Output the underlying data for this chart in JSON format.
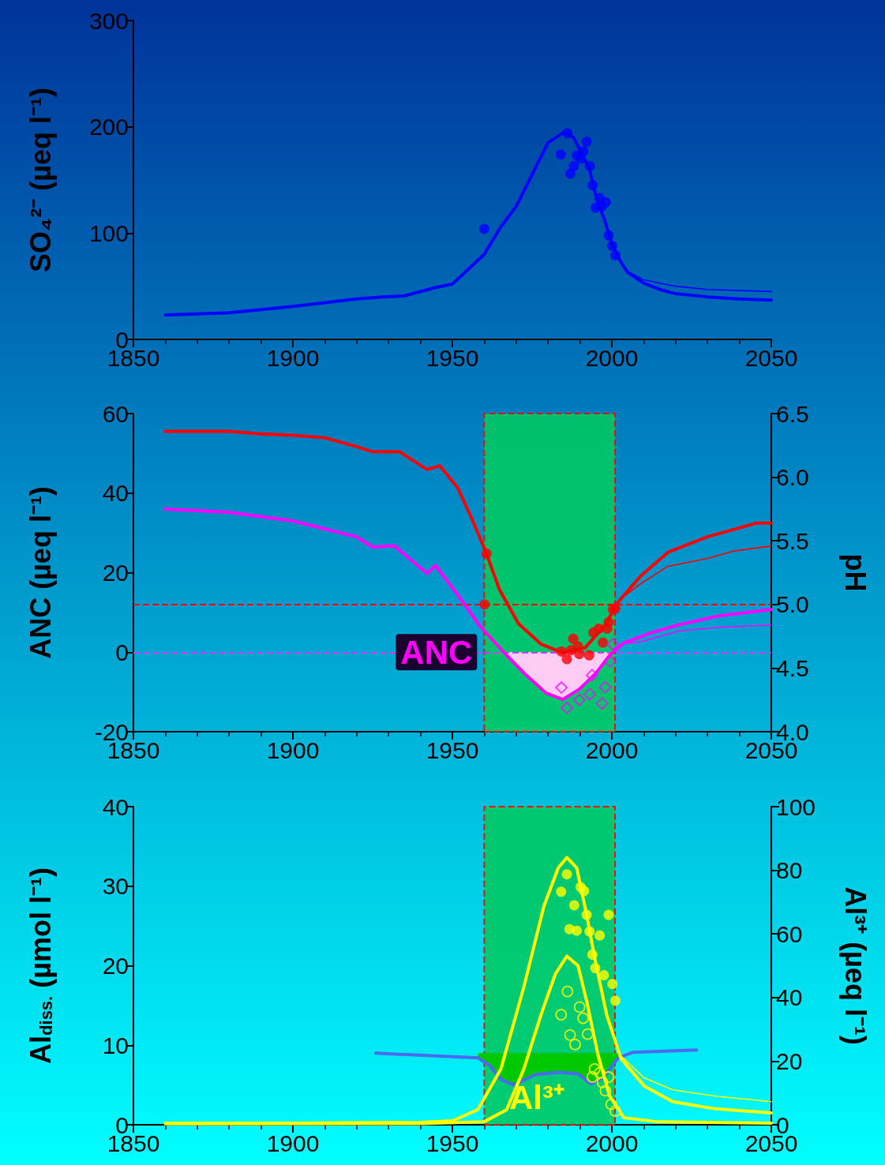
{
  "chart_data": [
    {
      "type": "line",
      "ylabel": "SO₄²⁻ (µeq l⁻¹)",
      "xlim": [
        1850,
        2050
      ],
      "xticks": [
        1850,
        1900,
        1950,
        2000,
        2050
      ],
      "ylim": [
        0,
        300
      ],
      "yticks": [
        0,
        100,
        200,
        300
      ],
      "series": [
        {
          "color": "#0000ff",
          "marker": "none",
          "x": [
            1860,
            1880,
            1900,
            1920,
            1928,
            1935,
            1945,
            1950,
            1960,
            1965,
            1970,
            1975,
            1980,
            1985,
            1988,
            1990,
            1993,
            1995,
            1998,
            2000,
            2003,
            2005,
            2010,
            2015,
            2020,
            2030,
            2040,
            2050
          ],
          "values": [
            23,
            25,
            31,
            38,
            40,
            41,
            49,
            52,
            80,
            105,
            125,
            155,
            185,
            195,
            190,
            178,
            160,
            135,
            110,
            90,
            72,
            63,
            53,
            47,
            43,
            40,
            38,
            37
          ]
        },
        {
          "color": "#0000ff",
          "marker": "none",
          "x": [
            2005,
            2010,
            2020,
            2030,
            2050
          ],
          "values": [
            64,
            56,
            50,
            47,
            45
          ]
        },
        {
          "type": "scatter",
          "color": "#0000ff",
          "marker": "circle",
          "x": [
            1960,
            1986.1,
            1984,
            1992.1,
            1991.1,
            1989,
            1990.3,
            1988.1,
            1987,
            1993.1,
            1994,
            1996.1,
            1998.1,
            1996.8,
            1994.9,
            1999,
            2000.1,
            2001.1
          ],
          "values": [
            104,
            194,
            174,
            186,
            177,
            173,
            170,
            163,
            156,
            163,
            145,
            133,
            129,
            125,
            124,
            98,
            88,
            79
          ]
        }
      ]
    },
    {
      "type": "line",
      "ylabel": "ANC (µeq l⁻¹)",
      "y2label": "pH",
      "xlim": [
        1850,
        2050
      ],
      "xticks": [
        1850,
        1900,
        1950,
        2000,
        2050
      ],
      "ylim": [
        -20,
        60
      ],
      "yticks": [
        -20,
        0,
        20,
        40,
        60
      ],
      "y2lim": [
        4.0,
        6.5
      ],
      "y2ticks": [
        {
          "value": 4.0,
          "label": "4.0"
        },
        4.5,
        {
          "value": 5.0,
          "label": "5.0"
        },
        5.5,
        {
          "value": 6.0,
          "label": "6.0"
        },
        6.5
      ],
      "annotations": [
        {
          "text": "ANC",
          "x": 1945,
          "y": 0
        }
      ],
      "ref_lines": [
        {
          "axis": "y2",
          "value": 5.0,
          "color": "#ff0000",
          "line_style": "dashed"
        },
        {
          "axis": "y",
          "value": 0,
          "color": "#c040ff",
          "line_style": "dashed"
        }
      ],
      "bands": [
        {
          "axis": "x",
          "from": 1960,
          "to": 2001,
          "color": "#00c864"
        }
      ],
      "series": [
        {
          "axis": "y2",
          "color": "#ff0000",
          "marker": "none",
          "x": [
            1860,
            1880,
            1890,
            1900,
            1910,
            1920,
            1925,
            1933.4,
            1942.1,
            1946,
            1951.6,
            1956,
            1960.7,
            1964.7,
            1970.7,
            1977.7,
            1984.6,
            1991.6,
            1997.7,
            2002,
            2008.9,
            2017.6,
            2029.8,
            2038.4,
            2045.4,
            2050
          ],
          "values": [
            6.36,
            6.36,
            6.34,
            6.33,
            6.31,
            6.24,
            6.2,
            6.2,
            6.06,
            6.09,
            5.92,
            5.68,
            5.4,
            5.12,
            4.85,
            4.69,
            4.62,
            4.66,
            4.83,
            5.02,
            5.22,
            5.41,
            5.53,
            5.59,
            5.64,
            5.64
          ]
        },
        {
          "axis": "y2",
          "color": "#ff0000",
          "marker": "none",
          "x": [
            2003,
            2008.9,
            2017.6,
            2029.8,
            2038.4,
            2050
          ],
          "values": [
            5.05,
            5.16,
            5.3,
            5.36,
            5.42,
            5.46
          ]
        },
        {
          "color": "#ff00ff",
          "marker": "none",
          "x": [
            1860,
            1880,
            1900,
            1920,
            1925,
            1931.7,
            1942.1,
            1944.7,
            1951.6,
            1958.6,
            1966.4,
            1972.5,
            1979.4,
            1984.6,
            1989.8,
            1995,
            1999.4,
            2003.7,
            2012.4,
            2021.1,
            2034.1,
            2050
          ],
          "values": [
            36,
            35.2,
            33,
            29,
            26.4,
            26.8,
            19.8,
            21.8,
            14.5,
            6.6,
            -0.3,
            -5.3,
            -10.3,
            -11.9,
            -9.3,
            -5.3,
            -0.7,
            2.3,
            4.9,
            6.9,
            9.2,
            10.7
          ]
        },
        {
          "color": "#ff00ff",
          "marker": "none",
          "x": [
            2004,
            2009,
            2021.1,
            2034.1,
            2050
          ],
          "values": [
            2.2,
            2.6,
            5.3,
            6.3,
            6.8
          ]
        },
        {
          "type": "area",
          "color": "#ffccf5",
          "x": [
            1966.4,
            1972.5,
            1979.4,
            1984.6,
            1989.8,
            1995,
            1999.4
          ],
          "values": [
            -0.3,
            -5.3,
            -10.3,
            -11.9,
            -9.3,
            -5.3,
            -0.7
          ]
        },
        {
          "type": "scatter",
          "axis": "y2",
          "color": "#ff0000",
          "marker": "circle",
          "x": [
            1960.7,
            1960.1,
            1984.2,
            1985.9,
            1987.9,
            1989.4,
            1989.8,
            1992.9,
            1987.2,
            1994.2,
            1995.9,
            1997.2,
            1998.5,
            1999,
            2000.3,
            2001.1
          ],
          "values": [
            5.4,
            5.0,
            4.63,
            4.57,
            4.73,
            4.67,
            4.61,
            4.6,
            4.64,
            4.78,
            4.81,
            4.7,
            4.81,
            4.86,
            4.96,
            4.97
          ]
        },
        {
          "type": "scatter",
          "color": "#ff00ff",
          "marker": "diamond",
          "x": [
            1984.2,
            1985.9,
            1989.8,
            1993.1,
            1993.8,
            1997.9,
            1996.9,
            1999.4,
            2000.3
          ],
          "values": [
            -8.9,
            -14,
            -12,
            -10.6,
            -5.8,
            -8.8,
            -12.9,
            -2.3,
            2.0
          ]
        }
      ]
    },
    {
      "type": "line",
      "ylabel": "Al$_{diss.}$ (µmol l⁻¹)",
      "y2label": "Al³⁺ (µeq l⁻¹)",
      "xlim": [
        1850,
        2050
      ],
      "xticks": [
        1850,
        1900,
        1950,
        2000,
        2050
      ],
      "ylim": [
        0,
        40
      ],
      "yticks": [
        0,
        10,
        20,
        30,
        40
      ],
      "y2lim": [
        0,
        100
      ],
      "y2ticks": [
        0,
        20,
        40,
        60,
        80,
        100
      ],
      "annotations": [
        "Al³⁺"
      ],
      "bands": [
        {
          "axis": "x",
          "from": 1960,
          "to": 2001,
          "color": "#00c864"
        }
      ],
      "series": [
        {
          "color": "#4a6af0",
          "marker": "none",
          "x": [
            1926,
            1958,
            1961.6,
            1965.2,
            1969.3,
            1976,
            1983.2,
            1989.4,
            1993.5,
            1997.5,
            2002,
            2006.5,
            2026.6
          ],
          "values": [
            9.0,
            8.4,
            7.5,
            5.7,
            5.0,
            6.3,
            6.6,
            6.4,
            5.1,
            6.0,
            8.4,
            9.1,
            9.4
          ],
          "lower": [
            null,
            8.4,
            7.5,
            5.7,
            5.0,
            6.3,
            6.6,
            6.4,
            5.1,
            6.0,
            8.4,
            null,
            null
          ],
          "upper": [
            null,
            9.0,
            9.0,
            9.0,
            9.0,
            9.0,
            9.0,
            9.0,
            9.0,
            9.0,
            9.0,
            null,
            null
          ]
        },
        {
          "color": "#ffff00",
          "marker": "none",
          "x": [
            1860,
            1900,
            1940,
            1950,
            1958,
            1965.2,
            1972.4,
            1978.7,
            1983.2,
            1985.9,
            1989,
            1992.1,
            1994.8,
            1998.4,
            2002.9,
            2010.1,
            2019.1,
            2032.5,
            2050
          ],
          "values": [
            0.2,
            0.2,
            0.3,
            0.5,
            1.9,
            7.0,
            17.3,
            27.5,
            32.3,
            33.6,
            32.3,
            26.4,
            20.6,
            13.8,
            8.3,
            4.9,
            2.9,
            2.0,
            1.5
          ]
        },
        {
          "color": "#ffff00",
          "marker": "none",
          "x": [
            2003,
            2010.1,
            2019.1,
            2032.5,
            2050
          ],
          "values": [
            8.6,
            5.9,
            4.4,
            3.6,
            2.9
          ]
        },
        {
          "axis": "y2",
          "color": "#ffff00",
          "marker": "none",
          "x": [
            1860,
            1940,
            1959.9,
            1967,
            1972.4,
            1977.8,
            1982.3,
            1985.9,
            1989.4,
            1992.1,
            1995.7,
            1999.3,
            2003.8,
            2014.5,
            2050
          ],
          "values": [
            0.3,
            0.4,
            0.9,
            4.7,
            17.5,
            34.6,
            47.4,
            53.0,
            50.0,
            38.9,
            21.8,
            9.0,
            2.2,
            0.9,
            0.5
          ]
        },
        {
          "type": "scatter",
          "color": "#ffff00",
          "marker": "circle",
          "x": [
            1985.9,
            1984.1,
            1990.2,
            1991.3,
            1988.2,
            1992.1,
            1999,
            1986.7,
            1989,
            1993,
            1996.2,
            1993.9,
            1994.8,
            1997.5,
            2000.2,
            2001.1
          ],
          "values": [
            31.5,
            29.3,
            29.9,
            29.4,
            27.6,
            26.4,
            26.4,
            24.6,
            24.4,
            24.3,
            23.8,
            21.4,
            19.7,
            18.8,
            17.7,
            15.6
          ]
        },
        {
          "type": "scatter",
          "axis": "y2",
          "color": "#ffff00",
          "marker": "circle",
          "x": [
            1986.1,
            1989.9,
            1984.1,
            1991,
            1986.9,
            1992.4,
            1988.5,
            1994.6,
            1996.2,
            1993.9,
            1999,
            1997.1,
            1998,
            1999.8,
            2001.1
          ],
          "values": [
            41.9,
            37.0,
            34.6,
            33.5,
            28.2,
            28.5,
            25.2,
            17.5,
            16.3,
            15.0,
            15.0,
            13.3,
            10.7,
            6.4,
            4.3
          ]
        }
      ]
    }
  ]
}
